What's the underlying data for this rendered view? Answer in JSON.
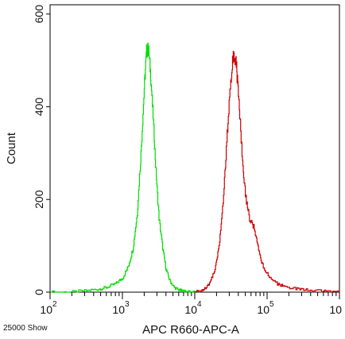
{
  "chart_data": {
    "type": "line",
    "title": "",
    "xlabel": "APC R660-APC-A",
    "ylabel": "Count",
    "x_scale": "log",
    "xlim": [
      100,
      1000000
    ],
    "ylim": [
      0,
      620
    ],
    "x_ticks": [
      {
        "base": "10",
        "exp": "2"
      },
      {
        "base": "10",
        "exp": "3"
      },
      {
        "base": "10",
        "exp": "4"
      },
      {
        "base": "10",
        "exp": "5"
      },
      {
        "base": "10",
        "exp": ""
      }
    ],
    "y_ticks": [
      "0",
      "200",
      "400",
      "600"
    ],
    "annotation": "25000 Show",
    "grid": false,
    "series": [
      {
        "color": "#00dd00",
        "x": [
          100,
          180,
          300,
          450,
          600,
          800,
          1000,
          1200,
          1400,
          1600,
          1800,
          2000,
          2150,
          2300,
          2450,
          2650,
          2900,
          3200,
          3600,
          4000,
          4500,
          5200,
          6000,
          7000,
          8000,
          9000,
          10000
        ],
        "y": [
          0,
          0,
          3,
          6,
          10,
          18,
          30,
          55,
          95,
          170,
          300,
          440,
          520,
          525,
          470,
          380,
          260,
          160,
          95,
          50,
          25,
          10,
          5,
          2,
          1,
          0,
          0
        ]
      },
      {
        "color": "#cc0000",
        "x": [
          10000,
          13000,
          16000,
          19000,
          22000,
          25000,
          28000,
          31000,
          34000,
          37000,
          40000,
          45000,
          50000,
          57000,
          65000,
          75000,
          85000,
          100000,
          130000,
          170000,
          230000,
          320000,
          450000,
          650000,
          1000000
        ],
        "y": [
          0,
          5,
          18,
          50,
          110,
          210,
          340,
          450,
          515,
          500,
          430,
          300,
          210,
          160,
          140,
          95,
          60,
          40,
          20,
          12,
          8,
          5,
          3,
          2,
          0
        ]
      }
    ]
  }
}
